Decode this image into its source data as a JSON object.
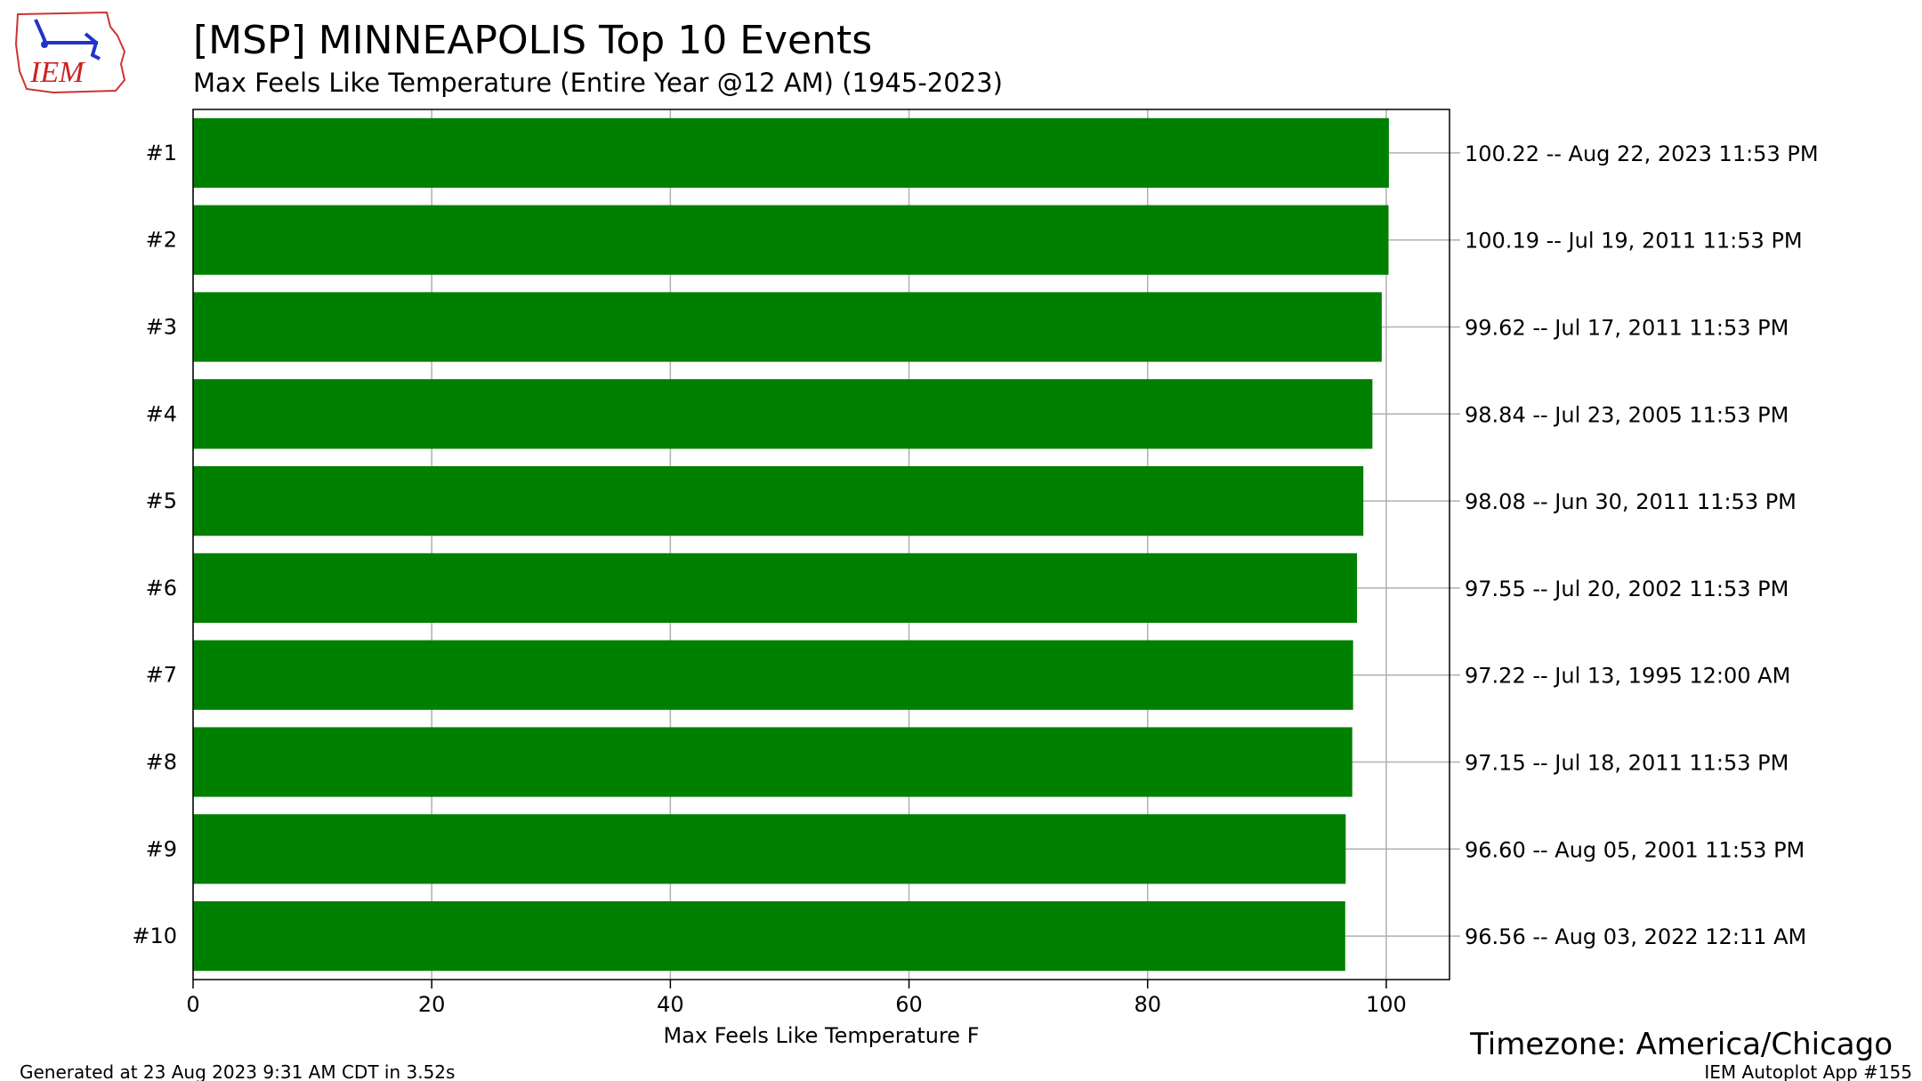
{
  "logo": {
    "text": "IEM"
  },
  "chart_data": {
    "type": "bar",
    "orientation": "horizontal",
    "title": "[MSP] MINNEAPOLIS Top 10 Events",
    "subtitle": "Max Feels Like Temperature  (Entire Year @12 AM) (1945-2023)",
    "xlabel": "Max Feels Like Temperature F",
    "ylabel": "",
    "xlim": [
      0,
      105.3
    ],
    "xticks": [
      0,
      20,
      40,
      60,
      80,
      100
    ],
    "grid": true,
    "bar_color": "#008000",
    "categories": [
      "#1",
      "#2",
      "#3",
      "#4",
      "#5",
      "#6",
      "#7",
      "#8",
      "#9",
      "#10"
    ],
    "values": [
      100.22,
      100.19,
      99.62,
      98.84,
      98.08,
      97.55,
      97.22,
      97.15,
      96.6,
      96.56
    ],
    "right_labels": [
      "100.22 -- Aug 22, 2023 11:53 PM",
      "100.19 -- Jul 19, 2011 11:53 PM",
      "99.62 -- Jul 17, 2011 11:53 PM",
      "98.84 -- Jul 23, 2005 11:53 PM",
      "98.08 -- Jun 30, 2011 11:53 PM",
      "97.55 -- Jul 20, 2002 11:53 PM",
      "97.22 -- Jul 13, 1995 12:00 AM",
      "97.15 -- Jul 18, 2011 11:53 PM",
      "96.60 -- Aug 05, 2001 11:53 PM",
      "96.56 -- Aug 03, 2022 12:11 AM"
    ]
  },
  "footer": {
    "timezone": "Timezone: America/Chicago",
    "generated": "Generated at 23 Aug 2023 9:31 AM CDT in 3.52s",
    "app": "IEM Autoplot App #155"
  }
}
